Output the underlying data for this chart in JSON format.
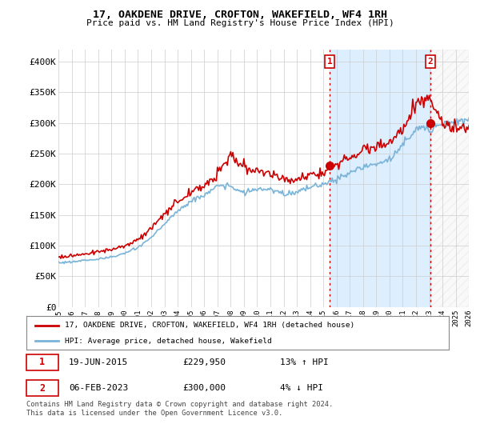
{
  "title": "17, OAKDENE DRIVE, CROFTON, WAKEFIELD, WF4 1RH",
  "subtitle": "Price paid vs. HM Land Registry's House Price Index (HPI)",
  "ylabel_ticks": [
    "£0",
    "£50K",
    "£100K",
    "£150K",
    "£200K",
    "£250K",
    "£300K",
    "£350K",
    "£400K"
  ],
  "ytick_vals": [
    0,
    50000,
    100000,
    150000,
    200000,
    250000,
    300000,
    350000,
    400000
  ],
  "ylim": [
    0,
    420000
  ],
  "legend_line1": "17, OAKDENE DRIVE, CROFTON, WAKEFIELD, WF4 1RH (detached house)",
  "legend_line2": "HPI: Average price, detached house, Wakefield",
  "sale1_label": "1",
  "sale1_date": "19-JUN-2015",
  "sale1_price": "£229,950",
  "sale1_hpi": "13% ↑ HPI",
  "sale2_label": "2",
  "sale2_date": "06-FEB-2023",
  "sale2_price": "£300,000",
  "sale2_hpi": "4% ↓ HPI",
  "footnote": "Contains HM Land Registry data © Crown copyright and database right 2024.\nThis data is licensed under the Open Government Licence v3.0.",
  "hpi_color": "#7ab4d8",
  "price_color": "#cc0000",
  "background_color": "#ffffff",
  "shade_color": "#ddeeff",
  "grid_color": "#cccccc",
  "sale1_x": 2015.47,
  "sale1_y": 229950,
  "sale2_x": 2023.09,
  "sale2_y": 300000,
  "xlim_left": 1995.0,
  "xlim_right": 2026.0
}
